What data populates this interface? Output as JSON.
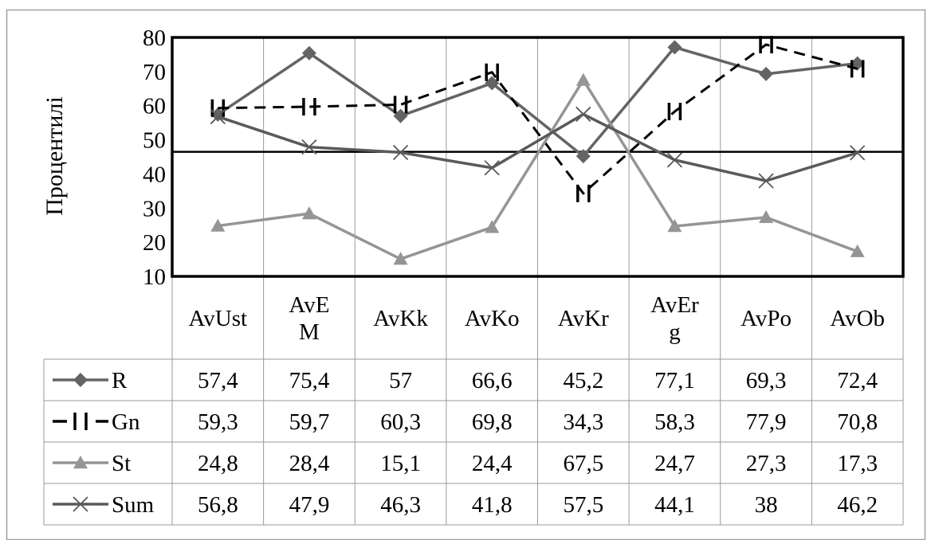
{
  "chart_data": {
    "type": "line",
    "ylabel": "Процентилі",
    "ylim": [
      10,
      80
    ],
    "yticks": [
      "10",
      "20",
      "30",
      "40",
      "50",
      "60",
      "70",
      "80"
    ],
    "reference_line": 46.5,
    "categories": [
      [
        "AvUst"
      ],
      [
        "AvE",
        "M"
      ],
      [
        "AvKk"
      ],
      [
        "AvKo"
      ],
      [
        "AvKr"
      ],
      [
        "AvEr",
        "g"
      ],
      [
        "AvPo"
      ],
      [
        "AvOb"
      ]
    ],
    "series": [
      {
        "name": "R",
        "color": "#646464",
        "marker": "diamond",
        "dash": "solid",
        "values": [
          57.4,
          75.4,
          57,
          66.6,
          45.2,
          77.1,
          69.3,
          72.4
        ],
        "labels": [
          "57,4",
          "75,4",
          "57",
          "66,6",
          "45,2",
          "77,1",
          "69,3",
          "72,4"
        ]
      },
      {
        "name": "Gn",
        "color": "#000000",
        "marker": "bar",
        "dash": "dashed",
        "values": [
          59.3,
          59.7,
          60.3,
          69.8,
          34.3,
          58.3,
          77.9,
          70.8
        ],
        "labels": [
          "59,3",
          "59,7",
          "60,3",
          "69,8",
          "34,3",
          "58,3",
          "77,9",
          "70,8"
        ]
      },
      {
        "name": "St",
        "color": "#959595",
        "marker": "triangle",
        "dash": "solid",
        "values": [
          24.8,
          28.4,
          15.1,
          24.4,
          67.5,
          24.7,
          27.3,
          17.3
        ],
        "labels": [
          "24,8",
          "28,4",
          "15,1",
          "24,4",
          "67,5",
          "24,7",
          "27,3",
          "17,3"
        ]
      },
      {
        "name": "Sum",
        "color": "#5a5a5a",
        "marker": "x",
        "dash": "solid",
        "values": [
          56.8,
          47.9,
          46.3,
          41.8,
          57.5,
          44.1,
          38,
          46.2
        ],
        "labels": [
          "56,8",
          "47,9",
          "46,3",
          "41,8",
          "57,5",
          "44,1",
          "38",
          "46,2"
        ]
      }
    ]
  }
}
